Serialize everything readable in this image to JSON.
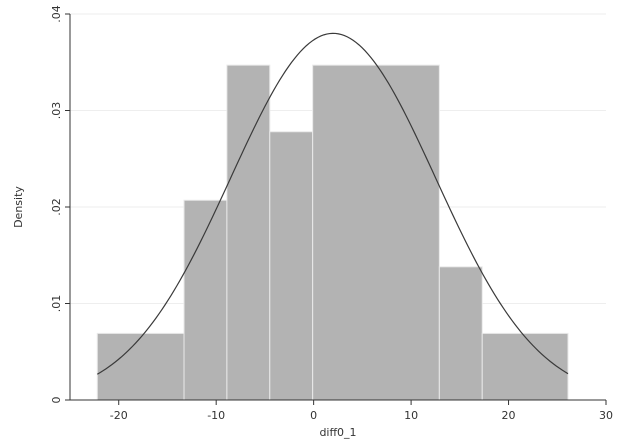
{
  "chart_data": {
    "type": "bar",
    "title": "",
    "xlabel": "diff0_1",
    "ylabel": "Density",
    "xlim": [
      -25,
      30
    ],
    "ylim": [
      0,
      0.04
    ],
    "x_ticks": [
      -20,
      -10,
      0,
      10,
      20,
      30
    ],
    "x_tick_labels": [
      "-20",
      "-10",
      "0",
      "10",
      "20",
      "30"
    ],
    "y_ticks": [
      0,
      0.01,
      0.02,
      0.03,
      0.04
    ],
    "y_tick_labels": [
      "0",
      ".01",
      ".02",
      ".03",
      ".04"
    ],
    "grid": true,
    "bins": [
      {
        "start": -22.2,
        "end": -13.3,
        "density": 0.0069
      },
      {
        "start": -13.3,
        "end": -8.9,
        "density": 0.0207
      },
      {
        "start": -8.9,
        "end": -4.5,
        "density": 0.0347
      },
      {
        "start": -4.5,
        "end": -0.1,
        "density": 0.0278
      },
      {
        "start": -0.1,
        "end": 12.9,
        "density": 0.0347
      },
      {
        "start": 12.9,
        "end": 17.3,
        "density": 0.0138
      },
      {
        "start": 17.3,
        "end": 26.1,
        "density": 0.0069
      }
    ],
    "normal_curve": {
      "mean": 2.0,
      "sd": 10.5,
      "x_range": [
        -22.2,
        26.1
      ]
    },
    "colors": {
      "bar_fill": "#b3b3b3",
      "bar_edge": "#e9e9e9",
      "curve": "#3a3a3a",
      "grid": "#eeeeee",
      "axis": "#333333"
    }
  }
}
